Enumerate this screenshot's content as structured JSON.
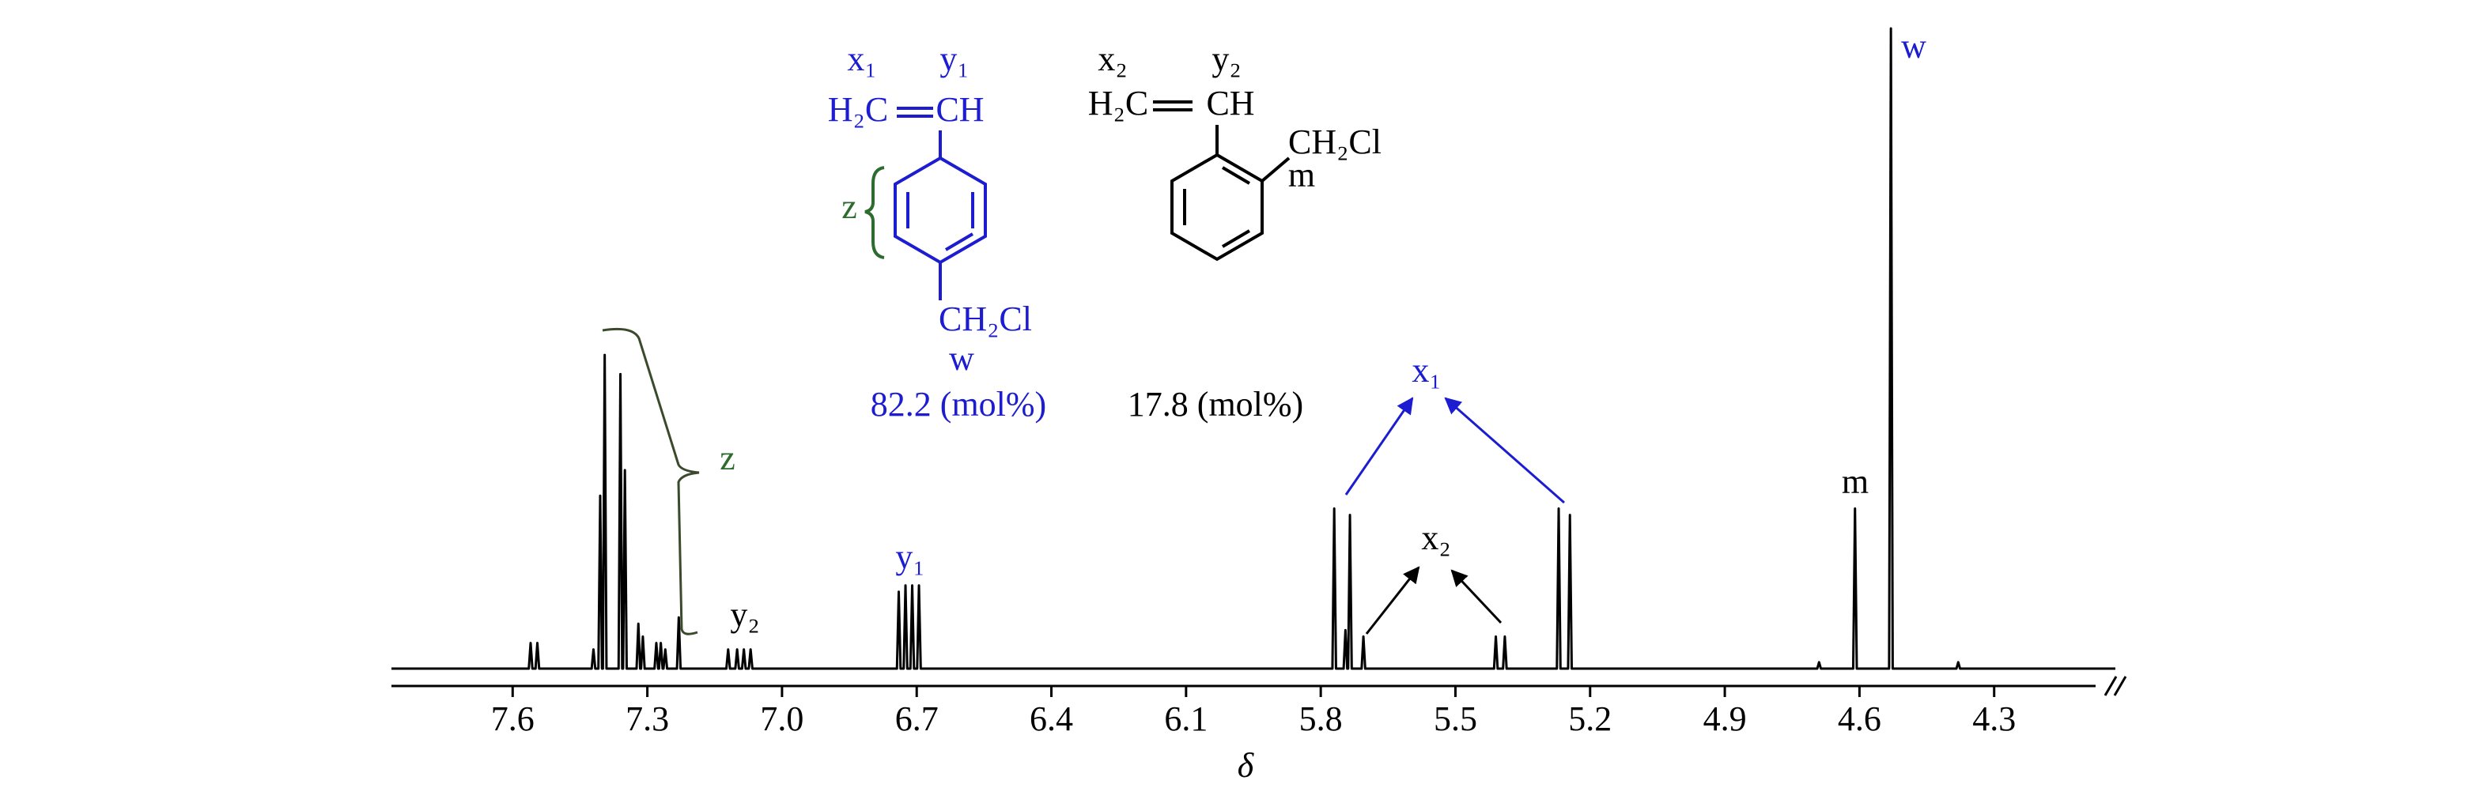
{
  "chart_data": {
    "type": "line",
    "x_label": "δ",
    "color": "#000000",
    "xlim": [
      7.87,
      4.03
    ],
    "xticks": [
      7.6,
      7.3,
      {
        "value": 7,
        "label": "7.0"
      },
      6.7,
      6.4,
      6.1,
      5.8,
      5.5,
      5.2,
      4.9,
      4.6,
      4.3
    ],
    "x": [
      7.87,
      7.564,
      7.56,
      7.556,
      7.549,
      7.545,
      7.541,
      7.424,
      7.42,
      7.416,
      7.409,
      7.405,
      7.401,
      7.399,
      7.395,
      7.391,
      7.364,
      7.36,
      7.356,
      7.354,
      7.35,
      7.346,
      7.324,
      7.32,
      7.316,
      7.314,
      7.31,
      7.306,
      7.284,
      7.28,
      7.276,
      7.274,
      7.27,
      7.266,
      7.264,
      7.26,
      7.256,
      7.234,
      7.23,
      7.226,
      7.124,
      7.12,
      7.116,
      7.104,
      7.1,
      7.096,
      7.089,
      7.085,
      7.081,
      7.074,
      7.07,
      7.066,
      6.744,
      6.74,
      6.736,
      6.729,
      6.725,
      6.721,
      6.714,
      6.71,
      6.706,
      6.699,
      6.695,
      6.691,
      5.774,
      5.77,
      5.766,
      5.749,
      5.745,
      5.741,
      5.739,
      5.735,
      5.731,
      5.709,
      5.705,
      5.701,
      5.414,
      5.41,
      5.406,
      5.394,
      5.39,
      5.386,
      5.274,
      5.27,
      5.266,
      5.249,
      5.245,
      5.241,
      4.694,
      4.69,
      4.686,
      4.614,
      4.61,
      4.606,
      4.534,
      4.53,
      4.526,
      4.384,
      4.38,
      4.376,
      4.03
    ],
    "values": [
      0,
      0,
      4,
      0,
      0,
      4,
      0,
      0,
      3,
      0,
      0,
      27,
      0,
      0,
      49,
      0,
      0,
      46,
      0,
      0,
      31,
      0,
      0,
      7,
      0,
      0,
      5,
      0,
      0,
      4,
      0,
      0,
      4,
      0,
      0,
      3,
      0,
      0,
      8,
      0,
      0,
      3,
      0,
      0,
      3,
      0,
      0,
      3,
      0,
      0,
      3,
      0,
      0,
      12,
      0,
      0,
      13,
      0,
      0,
      13,
      0,
      0,
      13,
      0,
      0,
      25,
      0,
      0,
      6,
      0,
      0,
      24,
      0,
      0,
      5,
      0,
      0,
      5,
      0,
      0,
      5,
      0,
      0,
      25,
      0,
      0,
      24,
      0,
      0,
      1,
      0,
      0,
      25,
      0,
      0,
      100,
      0,
      0,
      1,
      0,
      0
    ],
    "annotations": [
      {
        "text": "x₁",
        "color": "#1c1cd0"
      },
      {
        "text": "y₁",
        "color": "#1c1cd0"
      },
      {
        "text": "H₂C",
        "color": "#1c1cd0"
      },
      {
        "text": "CH",
        "color": "#1c1cd0"
      },
      {
        "text": "z",
        "color": "#2e6b2e"
      },
      {
        "text": "CH₂Cl",
        "color": "#1c1cd0"
      },
      {
        "text": "w",
        "color": "#1c1cd0"
      },
      {
        "text": "82.2 (mol%)",
        "color": "#1c1cd0"
      },
      {
        "text": "x₂",
        "color": "#000000"
      },
      {
        "text": "y₂",
        "color": "#000000"
      },
      {
        "text": "H₂C",
        "color": "#000000"
      },
      {
        "text": "CH",
        "color": "#000000"
      },
      {
        "text": "CH₂Cl",
        "color": "#000000"
      },
      {
        "text": "m",
        "color": "#000000"
      },
      {
        "text": "17.8 (mol%)",
        "color": "#000000"
      },
      {
        "text": "z",
        "color": "#2e6b2e"
      },
      {
        "text": "y₂",
        "color": "#000000"
      },
      {
        "text": "y₁",
        "color": "#1c1cd0"
      },
      {
        "text": "x₁",
        "color": "#1c1cd0"
      },
      {
        "text": "x₂",
        "color": "#000000"
      },
      {
        "text": "m",
        "color": "#000000"
      },
      {
        "text": "w",
        "color": "#1c1cd0"
      }
    ]
  }
}
